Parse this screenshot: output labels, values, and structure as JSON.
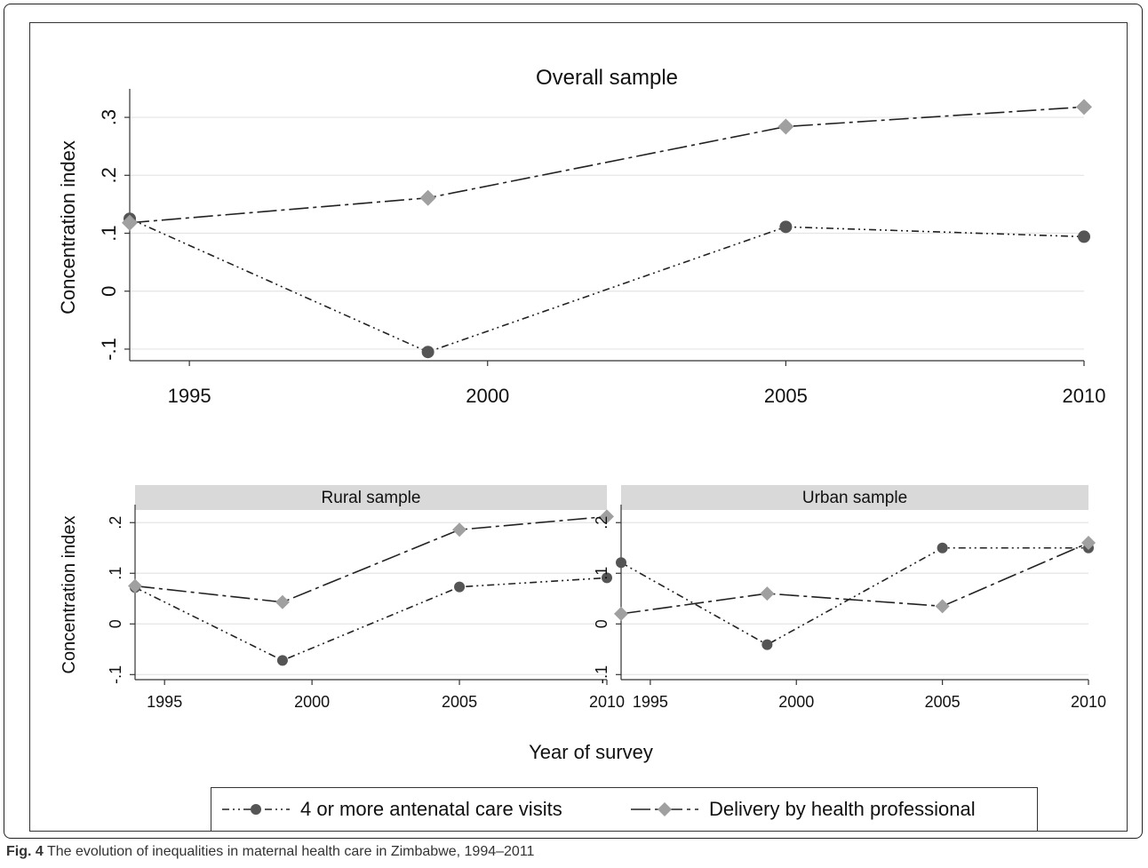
{
  "caption": {
    "fig_label": "Fig. 4",
    "text": "The evolution of inequalities in maternal health care in Zimbabwe, 1994–2011"
  },
  "common": {
    "xlabel": "Year of survey",
    "ylabel": "Concentration index"
  },
  "legend": {
    "items": [
      {
        "label": "4 or more antenatal care visits",
        "color": "#555555",
        "marker": "circle"
      },
      {
        "label": "Delivery by health professional",
        "color": "#a0a0a0",
        "marker": "diamond"
      }
    ]
  },
  "chart_data": [
    {
      "type": "line",
      "title": "Overall sample",
      "x": [
        1994,
        1999,
        2005,
        2010
      ],
      "xticks": [
        1995,
        2000,
        2005,
        2010
      ],
      "xlim": [
        1994,
        2010
      ],
      "ylim": [
        -0.12,
        0.34
      ],
      "yticks": [
        -0.1,
        0,
        0.1,
        0.2,
        0.3
      ],
      "ytick_labels": [
        "-.1",
        "0",
        ".1",
        ".2",
        ".3"
      ],
      "ylabel": "Concentration index",
      "grid": true,
      "series": [
        {
          "name": "4 or more antenatal care visits",
          "values": [
            0.125,
            -0.105,
            0.111,
            0.094
          ]
        },
        {
          "name": "Delivery by health professional",
          "values": [
            0.118,
            0.161,
            0.284,
            0.318
          ]
        }
      ]
    },
    {
      "type": "line",
      "title": "Rural sample",
      "x": [
        1994,
        1999,
        2005,
        2010
      ],
      "xticks": [
        1995,
        2000,
        2005,
        2010
      ],
      "xlim": [
        1994,
        2010
      ],
      "ylim": [
        -0.11,
        0.225
      ],
      "yticks": [
        -0.1,
        0,
        0.1,
        0.2
      ],
      "ytick_labels": [
        "-.1",
        "0",
        ".1",
        ".2"
      ],
      "ylabel": "Concentration index",
      "grid": true,
      "series": [
        {
          "name": "4 or more antenatal care visits",
          "values": [
            0.072,
            -0.072,
            0.073,
            0.091
          ]
        },
        {
          "name": "Delivery by health professional",
          "values": [
            0.075,
            0.043,
            0.186,
            0.212
          ]
        }
      ]
    },
    {
      "type": "line",
      "title": "Urban sample",
      "x": [
        1994,
        1999,
        2005,
        2010
      ],
      "xticks": [
        1995,
        2000,
        2005,
        2010
      ],
      "xlim": [
        1994,
        2010
      ],
      "ylim": [
        -0.11,
        0.225
      ],
      "yticks": [
        -0.1,
        0,
        0.1,
        0.2
      ],
      "ytick_labels": [
        "-.1",
        "0",
        ".1",
        ".2"
      ],
      "grid": true,
      "series": [
        {
          "name": "4 or more antenatal care visits",
          "values": [
            0.121,
            -0.041,
            0.15,
            0.15
          ]
        },
        {
          "name": "Delivery by health professional",
          "values": [
            0.02,
            0.06,
            0.035,
            0.16
          ]
        }
      ]
    }
  ]
}
